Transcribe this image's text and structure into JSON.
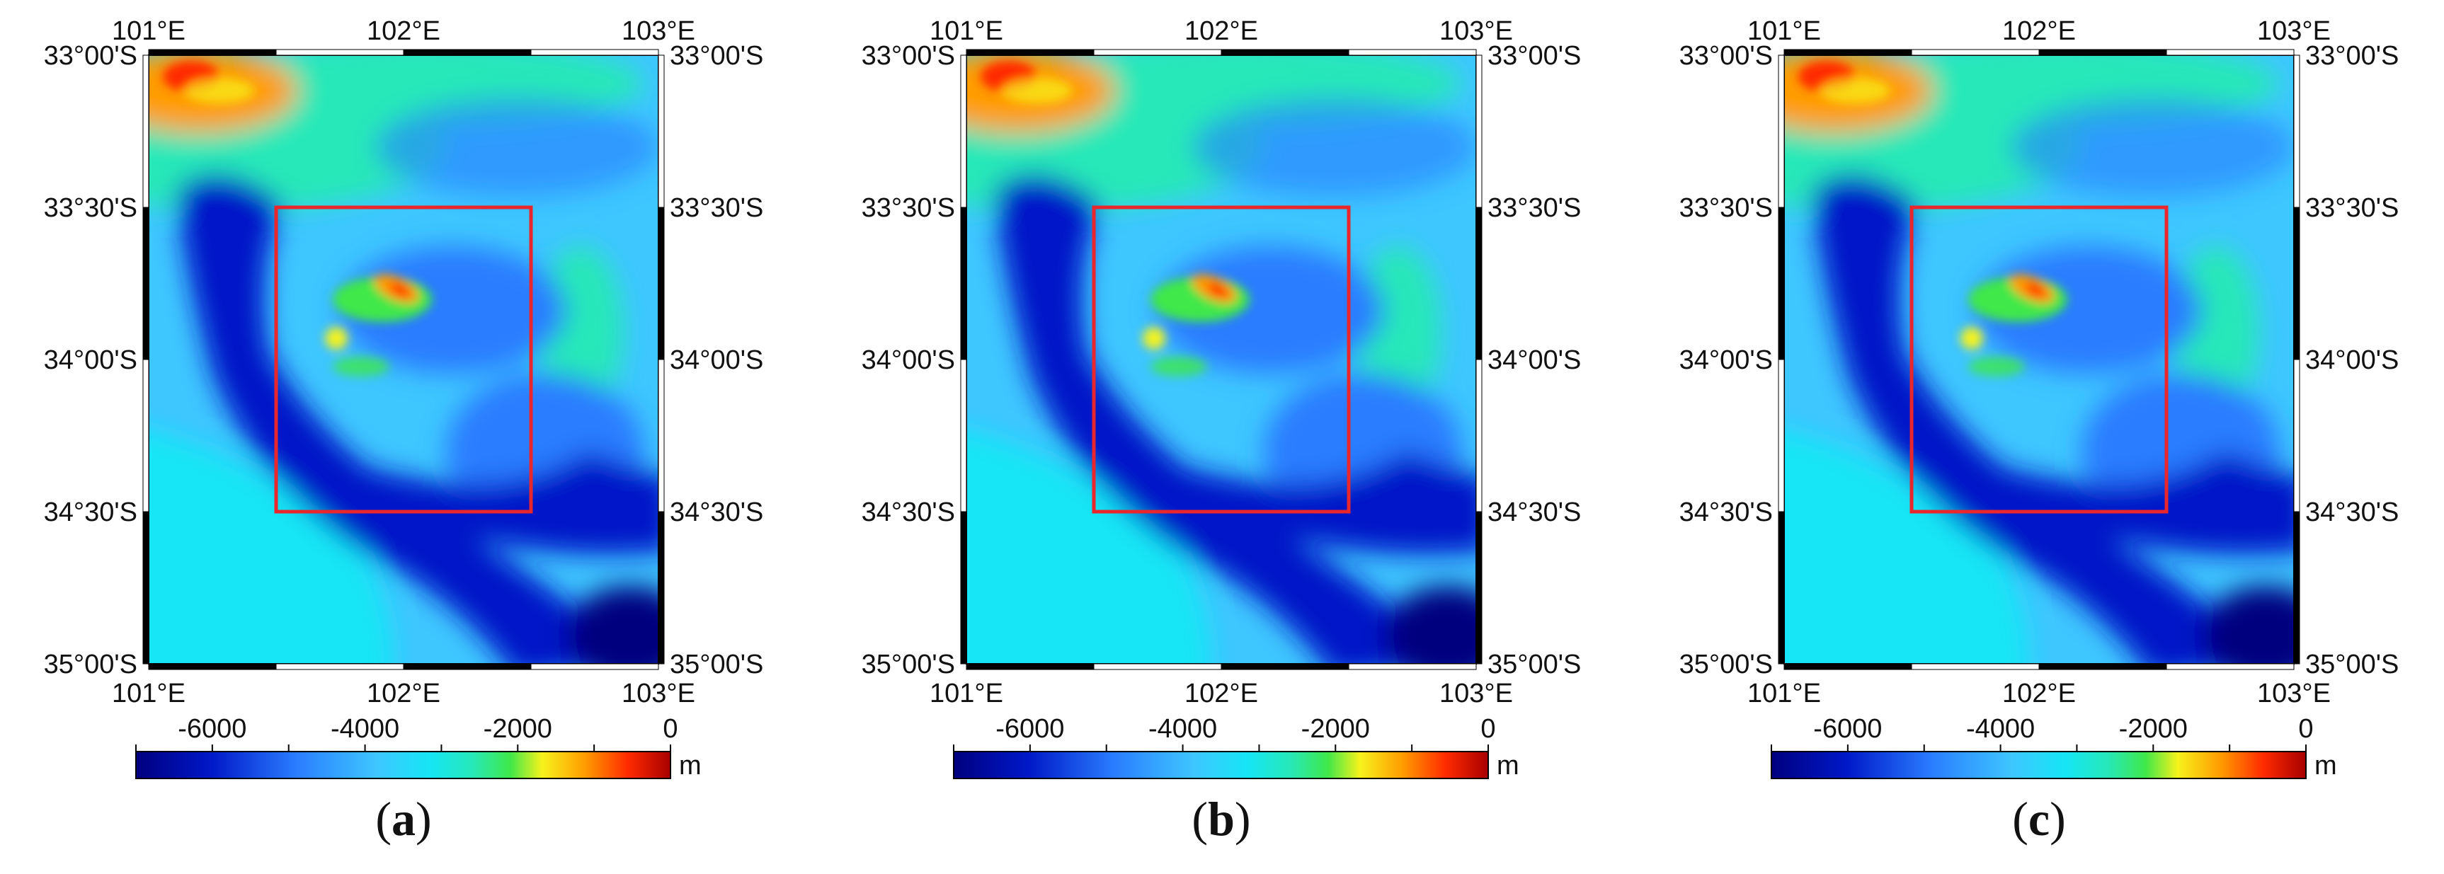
{
  "figure": {
    "panels": [
      {
        "caption_letter": "a",
        "lon_labels": [
          "101°E",
          "102°E",
          "103°E"
        ],
        "lat_labels": [
          "33°00'S",
          "33°30'S",
          "34°00'S",
          "34°30'S",
          "35°00'S"
        ],
        "colorbar": {
          "ticks": [
            "-6000",
            "-4000",
            "-2000",
            "0"
          ],
          "unit": "m",
          "min": -7000,
          "max": 0
        },
        "study_area_box": {
          "lon": [
            101.5,
            102.5
          ],
          "lat_south": [
            33.5,
            34.5
          ]
        }
      },
      {
        "caption_letter": "b",
        "lon_labels": [
          "101°E",
          "102°E",
          "103°E"
        ],
        "lat_labels": [
          "33°00'S",
          "33°30'S",
          "34°00'S",
          "34°30'S",
          "35°00'S"
        ],
        "colorbar": {
          "ticks": [
            "-6000",
            "-4000",
            "-2000",
            "0"
          ],
          "unit": "m",
          "min": -7000,
          "max": 0
        },
        "study_area_box": {
          "lon": [
            101.5,
            102.5
          ],
          "lat_south": [
            33.5,
            34.5
          ]
        }
      },
      {
        "caption_letter": "c",
        "lon_labels": [
          "101°E",
          "102°E",
          "103°E"
        ],
        "lat_labels": [
          "33°00'S",
          "33°30'S",
          "34°00'S",
          "34°30'S",
          "35°00'S"
        ],
        "colorbar": {
          "ticks": [
            "-6000",
            "-4000",
            "-2000",
            "0"
          ],
          "unit": "m",
          "min": -7000,
          "max": 0
        },
        "study_area_box": {
          "lon": [
            101.5,
            102.5
          ],
          "lat_south": [
            33.5,
            34.5
          ]
        }
      }
    ],
    "colors": {
      "deep": "#00007f",
      "dark_blue": "#0018c8",
      "blue": "#2a7dff",
      "light_blue": "#3ec6ff",
      "cyan": "#16e6f5",
      "teal": "#27e8b8",
      "green": "#3fe84a",
      "yellow": "#f6f21c",
      "orange": "#ff9c00",
      "red": "#ff2b00",
      "dark_red": "#a80000",
      "box_red": "#e8262c"
    }
  }
}
